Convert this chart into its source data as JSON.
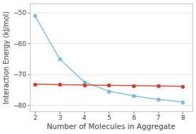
{
  "x": [
    2,
    3,
    4,
    5,
    6,
    7,
    8
  ],
  "blue_y": [
    -51.0,
    -65.0,
    -72.5,
    -75.5,
    -77.0,
    -78.2,
    -79.0
  ],
  "red_y": [
    -73.2,
    -73.4,
    -73.5,
    -73.6,
    -73.7,
    -73.8,
    -73.9
  ],
  "blue_color": "#7ab8d4",
  "red_color": "#c0392b",
  "xlabel": "Number of Molecules in Aggregate",
  "ylabel": "Interaction Energy (kJ/mol)",
  "xlim": [
    1.8,
    8.4
  ],
  "ylim": [
    -82,
    -47
  ],
  "yticks": [
    -50,
    -60,
    -70,
    -80
  ],
  "xticks": [
    2,
    3,
    4,
    5,
    6,
    7,
    8
  ],
  "bg_color": "#ffffff",
  "plot_bg": "#ffffff",
  "linewidth": 1.0,
  "markersize": 4.0,
  "tick_fontsize": 6.5,
  "label_fontsize": 7.0,
  "xlabel_fontsize": 7.5
}
